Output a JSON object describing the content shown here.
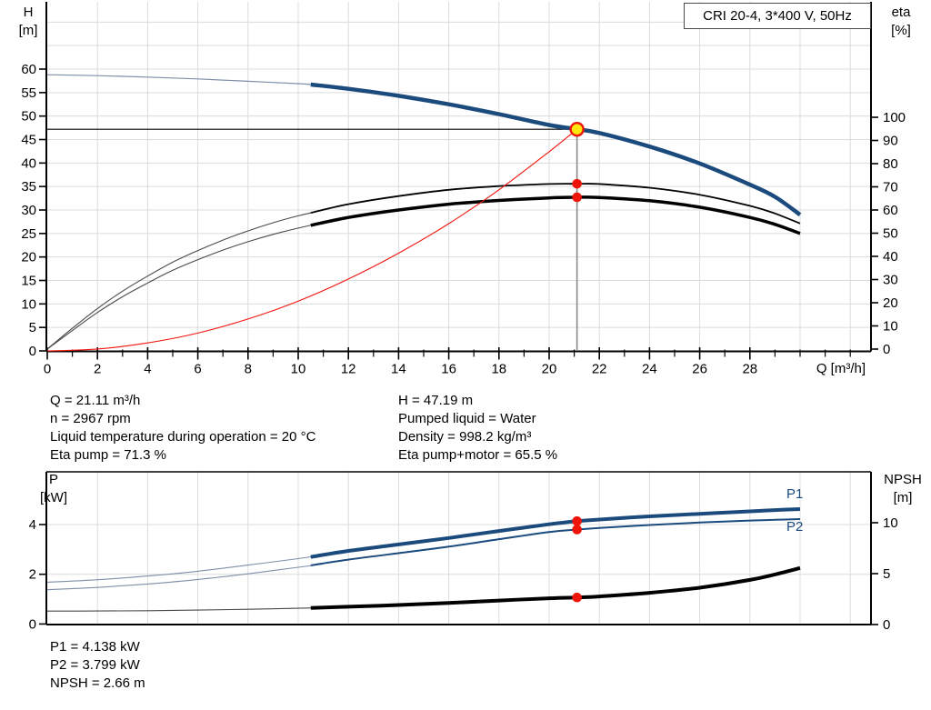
{
  "colors": {
    "curve_blue": "#1b4a7d",
    "lead_in": "#7d8fa8",
    "dark_thin": "#4a4a4a",
    "black": "#000000",
    "red": "#f2150d",
    "marker_red": "#ee1409",
    "duty_yellow": "#ffe70d",
    "grid": "#dcdcdc",
    "gray_guide": "#8a8a8a"
  },
  "info_top": {
    "left": [
      "Q = 21.11 m³/h",
      "n = 2967 rpm",
      "Liquid temperature during operation = 20 °C",
      "Eta pump = 71.3 %"
    ],
    "right": [
      "H = 47.19 m",
      "Pumped liquid = Water",
      "Density = 998.2 kg/m³",
      "Eta pump+motor = 65.5 %"
    ]
  },
  "info_bottom": [
    "P1 = 4.138 kW",
    "P2 = 3.799 kW",
    "NPSH = 2.66 m"
  ],
  "chart_data": [
    {
      "type": "line",
      "title": "CRI 20-4, 3*400 V, 50Hz",
      "xlabel": "Q [m³/h]",
      "ylabel_left": [
        "H",
        "[m]"
      ],
      "ylabel_right": [
        "eta",
        "[%]"
      ],
      "xlim": [
        0,
        33
      ],
      "ylim_left": [
        0,
        75
      ],
      "ylim_right": [
        0,
        100
      ],
      "axes": {
        "x": {
          "major_ticks": [
            0,
            2,
            4,
            6,
            8,
            10,
            12,
            14,
            16,
            18,
            20,
            22,
            24,
            26,
            28
          ],
          "minor_ticks": [
            1,
            3,
            5,
            7,
            9,
            11,
            13,
            15,
            17,
            19,
            21,
            23,
            25,
            27,
            29,
            30,
            31,
            32
          ]
        },
        "left": {
          "key": "H",
          "ticks": [
            0,
            5,
            10,
            15,
            20,
            25,
            30,
            35,
            40,
            45,
            50,
            55,
            60
          ]
        },
        "right": {
          "key": "eta",
          "ticks": [
            0,
            10,
            20,
            30,
            40,
            50,
            60,
            70,
            80,
            90,
            100
          ]
        }
      },
      "grid": {
        "x": [
          2,
          4,
          6,
          8,
          10,
          12,
          14,
          16,
          18,
          20,
          22,
          24,
          26,
          28,
          30,
          32
        ],
        "y": {
          "axis": "H",
          "values": [
            5,
            10,
            15,
            20,
            25,
            30,
            35,
            40,
            45,
            50,
            55,
            60,
            65,
            70
          ]
        }
      },
      "series": [
        {
          "id": "hq-lead-in-curve",
          "name": "H-Q curve low-flow range",
          "axis": "H",
          "color": "lead_in",
          "width": 1.2,
          "points": [
            [
              0,
              58.8
            ],
            [
              2,
              58.6
            ],
            [
              4,
              58.3
            ],
            [
              6,
              57.9
            ],
            [
              8,
              57.4
            ],
            [
              10,
              56.9
            ],
            [
              11.2,
              56.5
            ]
          ]
        },
        {
          "id": "hq-curve",
          "name": "H-Q curve",
          "axis": "H",
          "color": "curve_blue",
          "width": 4.5,
          "points": [
            [
              10.5,
              56.7
            ],
            [
              12,
              55.8
            ],
            [
              14,
              54.3
            ],
            [
              16,
              52.5
            ],
            [
              18,
              50.4
            ],
            [
              20,
              48.1
            ],
            [
              21.11,
              47.19
            ],
            [
              22,
              46.4
            ],
            [
              24,
              43.5
            ],
            [
              26,
              39.9
            ],
            [
              28,
              35.4
            ],
            [
              29,
              32.8
            ],
            [
              30,
              29.0
            ]
          ]
        },
        {
          "id": "eta-pump-lead-in-curve",
          "name": "Eta pump low-flow range",
          "axis": "eta",
          "color": "dark_thin",
          "width": 1.1,
          "points": [
            [
              0,
              0
            ],
            [
              1,
              9
            ],
            [
              2,
              17.5
            ],
            [
              3,
              25
            ],
            [
              4,
              31.5
            ],
            [
              5,
              37.5
            ],
            [
              6,
              42.5
            ],
            [
              7,
              47
            ],
            [
              8,
              51
            ],
            [
              9,
              54.5
            ],
            [
              10,
              57.5
            ],
            [
              11,
              60
            ]
          ]
        },
        {
          "id": "eta-pump-curve",
          "name": "Eta pump",
          "axis": "eta",
          "color": "black",
          "width": 1.8,
          "points": [
            [
              10.5,
              58.8
            ],
            [
              12,
              62.5
            ],
            [
              14,
              66
            ],
            [
              16,
              68.7
            ],
            [
              18,
              70.3
            ],
            [
              20,
              71.2
            ],
            [
              21.11,
              71.3
            ],
            [
              22,
              71.2
            ],
            [
              24,
              69.6
            ],
            [
              26,
              66.6
            ],
            [
              28,
              61.8
            ],
            [
              29,
              58.5
            ],
            [
              30,
              54.2
            ]
          ]
        },
        {
          "id": "eta-pump-motor-lead-in-curve",
          "name": "Eta pump+motor low-flow range",
          "axis": "eta",
          "color": "dark_thin",
          "width": 1.1,
          "points": [
            [
              0,
              0
            ],
            [
              1,
              8
            ],
            [
              2,
              15.8
            ],
            [
              3,
              22.6
            ],
            [
              4,
              28.5
            ],
            [
              5,
              34
            ],
            [
              6,
              38.6
            ],
            [
              7,
              42.7
            ],
            [
              8,
              46.3
            ],
            [
              9,
              49.5
            ],
            [
              10,
              52.2
            ],
            [
              11,
              54.6
            ]
          ]
        },
        {
          "id": "eta-pump-motor-curve",
          "name": "Eta pump+motor",
          "axis": "eta",
          "color": "black",
          "width": 3.5,
          "points": [
            [
              10.5,
              53.4
            ],
            [
              12,
              56.8
            ],
            [
              14,
              60
            ],
            [
              16,
              62.5
            ],
            [
              18,
              64.1
            ],
            [
              20,
              65.2
            ],
            [
              21.11,
              65.5
            ],
            [
              22,
              65.4
            ],
            [
              24,
              64
            ],
            [
              26,
              61.2
            ],
            [
              28,
              56.8
            ],
            [
              29,
              53.8
            ],
            [
              30,
              49.9
            ]
          ]
        },
        {
          "id": "system-curve",
          "name": "System curve",
          "axis": "H",
          "color": "red",
          "width": 1.1,
          "points": [
            [
              0,
              0
            ],
            [
              2,
              0.4
            ],
            [
              4,
              1.7
            ],
            [
              6,
              3.8
            ],
            [
              8,
              6.8
            ],
            [
              10,
              10.6
            ],
            [
              12,
              15.3
            ],
            [
              14,
              20.8
            ],
            [
              16,
              27.1
            ],
            [
              18,
              34.3
            ],
            [
              20,
              42.4
            ],
            [
              21.11,
              47.19
            ]
          ]
        }
      ],
      "guides": [
        {
          "id": "head-guide-line",
          "type": "h",
          "axis": "H",
          "value": 47.19,
          "q1": 0,
          "q2": 21.11,
          "color": "black",
          "width": 1.2
        },
        {
          "id": "duty-flow-guide-line",
          "type": "v",
          "axis": "H",
          "q": 21.11,
          "v1": 47.19,
          "v2": 0,
          "color": "gray_guide",
          "width": 1.6
        }
      ],
      "markers": [
        {
          "id": "duty-point",
          "axis": "H",
          "q": 21.11,
          "value": 47.19,
          "style": "duty"
        },
        {
          "id": "eta-pump-point",
          "axis": "eta",
          "q": 21.11,
          "value": 71.3,
          "style": "dot"
        },
        {
          "id": "eta-pump-motor-point",
          "axis": "eta",
          "q": 21.11,
          "value": 65.5,
          "style": "dot"
        }
      ]
    },
    {
      "type": "line",
      "title": "",
      "xlabel": "",
      "ylabel_left": [
        "P",
        "[kW]"
      ],
      "ylabel_right": [
        "NPSH",
        "[m]"
      ],
      "xlim": [
        0,
        33
      ],
      "ylim_left": [
        0,
        6
      ],
      "ylim_right": [
        0,
        15
      ],
      "inline_labels": [
        {
          "text": "P1"
        },
        {
          "text": "P2"
        }
      ],
      "axes": {
        "x": {
          "major_ticks": [],
          "minor_ticks": []
        },
        "left": {
          "key": "P",
          "ticks": [
            0,
            2,
            4
          ]
        },
        "right": {
          "key": "NPSH",
          "ticks": [
            0,
            5,
            10
          ]
        }
      },
      "grid": {
        "x": [
          2,
          4,
          6,
          8,
          10,
          12,
          14,
          16,
          18,
          20,
          22,
          24,
          26,
          28,
          30,
          32
        ],
        "y": {
          "axis": "P",
          "values": [
            2,
            4
          ]
        }
      },
      "series": [
        {
          "id": "p1-lead-in-curve",
          "name": "P1 low-flow range",
          "axis": "P",
          "color": "lead_in",
          "width": 1.1,
          "points": [
            [
              0,
              1.68
            ],
            [
              2,
              1.78
            ],
            [
              4,
              1.93
            ],
            [
              6,
              2.12
            ],
            [
              8,
              2.37
            ],
            [
              10,
              2.63
            ],
            [
              11,
              2.77
            ]
          ]
        },
        {
          "id": "p1-curve",
          "name": "P1",
          "axis": "P",
          "color": "curve_blue",
          "width": 4,
          "points": [
            [
              10.5,
              2.7
            ],
            [
              12,
              2.94
            ],
            [
              14,
              3.2
            ],
            [
              16,
              3.46
            ],
            [
              18,
              3.74
            ],
            [
              20,
              4.01
            ],
            [
              21.11,
              4.138
            ],
            [
              22,
              4.2
            ],
            [
              24,
              4.33
            ],
            [
              26,
              4.43
            ],
            [
              28,
              4.53
            ],
            [
              29,
              4.58
            ],
            [
              30,
              4.62
            ]
          ]
        },
        {
          "id": "p2-lead-in-curve",
          "name": "P2 low-flow range",
          "axis": "P",
          "color": "lead_in",
          "width": 1.1,
          "points": [
            [
              0,
              1.38
            ],
            [
              2,
              1.47
            ],
            [
              4,
              1.61
            ],
            [
              6,
              1.79
            ],
            [
              8,
              2.02
            ],
            [
              10,
              2.28
            ],
            [
              11,
              2.41
            ]
          ]
        },
        {
          "id": "p2-curve",
          "name": "P2",
          "axis": "P",
          "color": "curve_blue",
          "width": 2,
          "points": [
            [
              10.5,
              2.36
            ],
            [
              12,
              2.59
            ],
            [
              14,
              2.85
            ],
            [
              16,
              3.11
            ],
            [
              18,
              3.41
            ],
            [
              20,
              3.7
            ],
            [
              21.11,
              3.799
            ],
            [
              22,
              3.86
            ],
            [
              24,
              3.98
            ],
            [
              26,
              4.08
            ],
            [
              28,
              4.16
            ],
            [
              29,
              4.19
            ],
            [
              30,
              4.22
            ]
          ]
        },
        {
          "id": "npsh-lead-in-curve",
          "name": "NPSH low-flow range",
          "axis": "NPSH",
          "color": "dark_thin",
          "width": 1.1,
          "points": [
            [
              0,
              1.32
            ],
            [
              2,
              1.33
            ],
            [
              4,
              1.36
            ],
            [
              6,
              1.42
            ],
            [
              8,
              1.5
            ],
            [
              10,
              1.6
            ],
            [
              11,
              1.66
            ]
          ]
        },
        {
          "id": "npsh-curve",
          "name": "NPSH",
          "axis": "NPSH",
          "color": "black",
          "width": 4,
          "points": [
            [
              10.5,
              1.63
            ],
            [
              12,
              1.75
            ],
            [
              14,
              1.92
            ],
            [
              16,
              2.12
            ],
            [
              18,
              2.36
            ],
            [
              20,
              2.58
            ],
            [
              21.11,
              2.66
            ],
            [
              22,
              2.76
            ],
            [
              24,
              3.12
            ],
            [
              26,
              3.62
            ],
            [
              28,
              4.38
            ],
            [
              29,
              4.92
            ],
            [
              30,
              5.55
            ]
          ]
        }
      ],
      "guides": [],
      "markers": [
        {
          "id": "p1-point",
          "axis": "P",
          "q": 21.11,
          "value": 4.138,
          "style": "dot"
        },
        {
          "id": "p2-point",
          "axis": "P",
          "q": 21.11,
          "value": 3.799,
          "style": "dot"
        },
        {
          "id": "npsh-point",
          "axis": "NPSH",
          "q": 21.11,
          "value": 2.66,
          "style": "dot"
        }
      ]
    }
  ]
}
